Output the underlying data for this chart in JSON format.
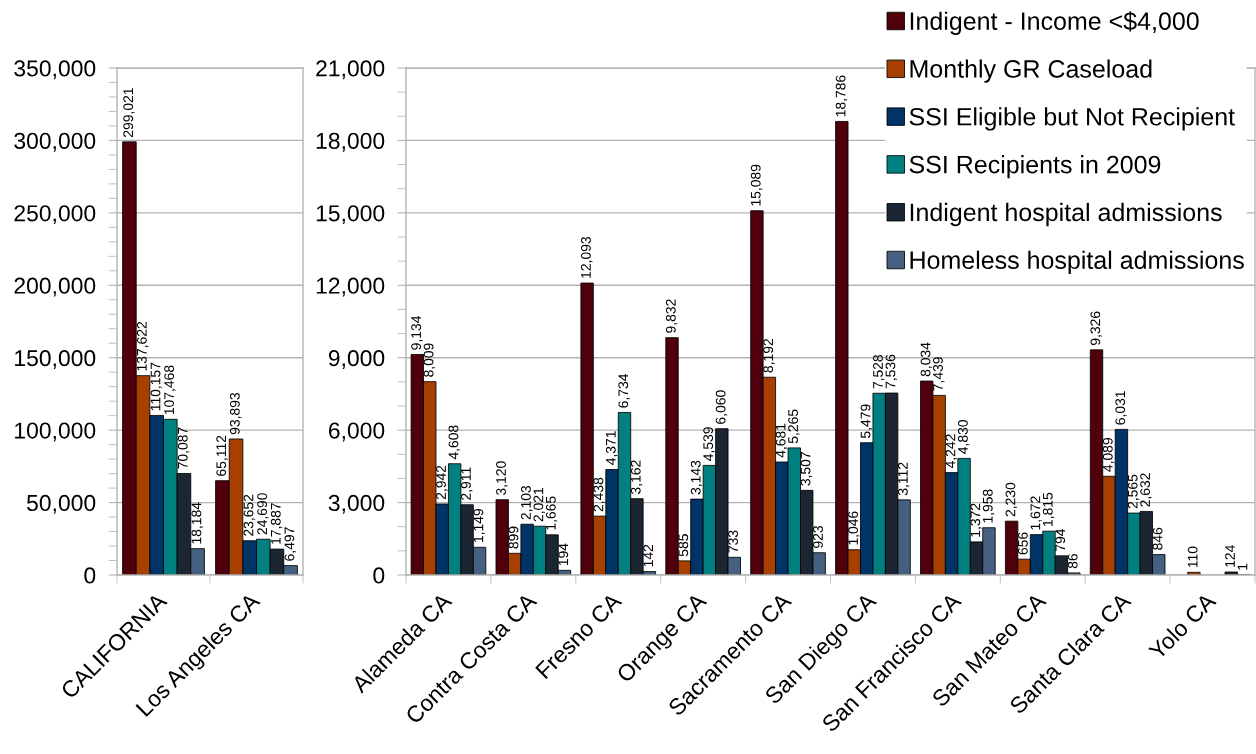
{
  "chart_data": [
    {
      "type": "bar",
      "categories": [
        "CALIFORNIA",
        "Los Angeles CA"
      ],
      "series": [
        {
          "color": "#4f000b",
          "values": [
            299021,
            65112
          ],
          "value_labels": [
            "299,021",
            "65,112"
          ]
        },
        {
          "color": "#a63f00",
          "values": [
            137622,
            93893
          ],
          "value_labels": [
            "137,622",
            "93,893"
          ]
        },
        {
          "color": "#003366",
          "values": [
            110157,
            23652
          ],
          "value_labels": [
            "110,157",
            "23,652"
          ]
        },
        {
          "color": "#008080",
          "values": [
            107468,
            24690
          ],
          "value_labels": [
            "107,468",
            "24,690"
          ]
        },
        {
          "color": "#1c2632",
          "values": [
            70087,
            17887
          ],
          "value_labels": [
            "70,087",
            "17,887"
          ]
        },
        {
          "color": "#456080",
          "values": [
            18184,
            6497
          ],
          "value_labels": [
            "18,184",
            "6,497"
          ]
        }
      ],
      "ylim": [
        0,
        350000
      ],
      "yticks": [
        0,
        {
          "value": 50000,
          "label": "50,000"
        },
        {
          "value": 100000,
          "label": "100,000"
        },
        {
          "value": 150000,
          "label": "150,000"
        },
        {
          "value": 200000,
          "label": "200,000"
        },
        {
          "value": 250000,
          "label": "250,000"
        },
        {
          "value": 300000,
          "label": "300,000"
        },
        {
          "value": 350000,
          "label": "350,000"
        }
      ],
      "grid": "y"
    },
    {
      "type": "bar",
      "categories": [
        "Alameda CA",
        "Contra Costa CA",
        "Fresno CA",
        "Orange CA",
        "Sacramento CA",
        "San Diego CA",
        "San Francisco CA",
        "San Mateo CA",
        "Santa Clara CA",
        "Yolo CA"
      ],
      "series": [
        {
          "name": "Indigent - Income <$4,000",
          "color": "#4f000b",
          "values": [
            9134,
            3120,
            12093,
            9832,
            15089,
            18786,
            8034,
            2230,
            9326,
            null
          ],
          "value_labels": [
            "9,134",
            "3,120",
            "12,093",
            "9,832",
            "15,089",
            "18,786",
            "8,034",
            "2,230",
            "9,326",
            null
          ]
        },
        {
          "name": "Monthly GR Caseload",
          "color": "#a63f00",
          "values": [
            8009,
            899,
            2438,
            585,
            8192,
            1046,
            7439,
            656,
            4089,
            110
          ],
          "value_labels": [
            "8,009",
            "899",
            "2,438",
            "585",
            "8,192",
            "1,046",
            "7,439",
            "656",
            "4,089",
            "110"
          ]
        },
        {
          "name": "SSI Eligible but Not Recipient",
          "color": "#003366",
          "values": [
            2942,
            2103,
            4371,
            3143,
            4681,
            5479,
            4242,
            1672,
            6031,
            null
          ],
          "value_labels": [
            "2,942",
            "2,103",
            "4,371",
            "3,143",
            "4,681",
            "5,479",
            "4,242",
            "1,672",
            "6,031",
            null
          ]
        },
        {
          "name": "SSI Recipients in 2009",
          "color": "#008080",
          "values": [
            4608,
            2021,
            6734,
            4539,
            5265,
            7528,
            4830,
            1815,
            2565,
            null
          ],
          "value_labels": [
            "4,608",
            "2,021",
            "6,734",
            "4,539",
            "5,265",
            "7,528",
            "4,830",
            "1,815",
            "2,565",
            null
          ]
        },
        {
          "name": "Indigent hospital admissions",
          "color": "#1c2632",
          "values": [
            2911,
            1665,
            3162,
            6060,
            3507,
            7536,
            1372,
            794,
            2632,
            124
          ],
          "value_labels": [
            "2,911",
            "1,665",
            "3,162",
            "6,060",
            "3,507",
            "7,536",
            "1,372",
            "794",
            "2,632",
            "124"
          ]
        },
        {
          "name": "Homeless hospital admissions",
          "color": "#456080",
          "values": [
            1149,
            194,
            142,
            733,
            923,
            3112,
            1958,
            86,
            846,
            1
          ],
          "value_labels": [
            "1,149",
            "194",
            "142",
            "733",
            "923",
            "3,112",
            "1,958",
            "86",
            "846",
            "1"
          ]
        }
      ],
      "ylim": [
        0,
        21000
      ],
      "yticks": [
        0,
        {
          "value": 3000,
          "label": "3,000"
        },
        {
          "value": 6000,
          "label": "6,000"
        },
        {
          "value": 9000,
          "label": "9,000"
        },
        {
          "value": 12000,
          "label": "12,000"
        },
        {
          "value": 15000,
          "label": "15,000"
        },
        {
          "value": 18000,
          "label": "18,000"
        },
        {
          "value": 21000,
          "label": "21,000"
        }
      ],
      "grid": "y",
      "legend": "top right"
    }
  ]
}
